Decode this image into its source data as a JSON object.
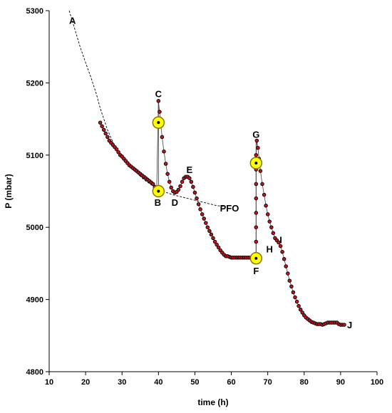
{
  "chart_data": {
    "type": "scatter",
    "xlabel": "time (h)",
    "ylabel": "P (mbar)",
    "xlim": [
      10,
      100
    ],
    "ylim": [
      4800,
      5300
    ],
    "xticks": [
      10,
      20,
      30,
      40,
      50,
      60,
      70,
      80,
      90,
      100
    ],
    "yticks": [
      4800,
      4900,
      5000,
      5100,
      5200,
      5300
    ],
    "xtick_labels": [
      "10",
      "20",
      "30",
      "40",
      "50",
      "60",
      "70",
      "80",
      "90",
      "100"
    ],
    "ytick_labels": [
      "4800",
      "4900",
      "5000",
      "5100",
      "5200",
      "5300"
    ],
    "grid": false,
    "series": [
      {
        "role": "measured",
        "style": "dark-red markers with black outline, joined by thin grey line",
        "marker_color": "#c0141e",
        "points": [
          [
            24.0,
            5145
          ],
          [
            24.5,
            5140
          ],
          [
            25.0,
            5135
          ],
          [
            25.5,
            5130
          ],
          [
            26.0,
            5125
          ],
          [
            26.5,
            5120
          ],
          [
            27.0,
            5117
          ],
          [
            27.5,
            5114
          ],
          [
            28.0,
            5111
          ],
          [
            28.5,
            5108
          ],
          [
            29.0,
            5104
          ],
          [
            29.5,
            5100
          ],
          [
            30.0,
            5098
          ],
          [
            30.5,
            5095
          ],
          [
            31.0,
            5092
          ],
          [
            31.5,
            5089
          ],
          [
            32.0,
            5086
          ],
          [
            32.5,
            5084
          ],
          [
            33.0,
            5082
          ],
          [
            33.5,
            5080
          ],
          [
            34.0,
            5078
          ],
          [
            34.5,
            5076
          ],
          [
            35.0,
            5074
          ],
          [
            35.5,
            5072
          ],
          [
            36.0,
            5070
          ],
          [
            36.5,
            5068
          ],
          [
            37.0,
            5066
          ],
          [
            37.5,
            5064
          ],
          [
            38.0,
            5062
          ],
          [
            38.5,
            5060
          ],
          [
            39.0,
            5056
          ],
          [
            39.5,
            5052
          ],
          [
            40.0,
            5175
          ],
          [
            40.3,
            5160
          ],
          [
            40.6,
            5145
          ],
          [
            41.0,
            5125
          ],
          [
            41.5,
            5105
          ],
          [
            42.0,
            5088
          ],
          [
            42.5,
            5074
          ],
          [
            43.0,
            5063
          ],
          [
            43.5,
            5055
          ],
          [
            44.0,
            5050
          ],
          [
            44.5,
            5048
          ],
          [
            45.0,
            5049
          ],
          [
            45.5,
            5052
          ],
          [
            46.0,
            5057
          ],
          [
            46.5,
            5063
          ],
          [
            47.0,
            5068
          ],
          [
            47.5,
            5070
          ],
          [
            48.0,
            5070
          ],
          [
            48.5,
            5068
          ],
          [
            49.0,
            5063
          ],
          [
            49.5,
            5056
          ],
          [
            50.0,
            5048
          ],
          [
            50.5,
            5040
          ],
          [
            51.0,
            5032
          ],
          [
            51.5,
            5025
          ],
          [
            52.0,
            5018
          ],
          [
            52.5,
            5012
          ],
          [
            53.0,
            5006
          ],
          [
            53.5,
            5000
          ],
          [
            54.0,
            4995
          ],
          [
            54.5,
            4990
          ],
          [
            55.0,
            4985
          ],
          [
            55.5,
            4980
          ],
          [
            56.0,
            4976
          ],
          [
            56.5,
            4972
          ],
          [
            57.0,
            4968
          ],
          [
            57.5,
            4965
          ],
          [
            58.0,
            4962
          ],
          [
            58.5,
            4960
          ],
          [
            59.0,
            4960
          ],
          [
            59.5,
            4959
          ],
          [
            60.0,
            4958
          ],
          [
            60.5,
            4958
          ],
          [
            61.0,
            4958
          ],
          [
            61.5,
            4958
          ],
          [
            62.0,
            4958
          ],
          [
            62.5,
            4958
          ],
          [
            63.0,
            4958
          ],
          [
            63.5,
            4958
          ],
          [
            64.0,
            4958
          ],
          [
            64.5,
            4958
          ],
          [
            65.0,
            4958
          ],
          [
            65.5,
            4957
          ],
          [
            66.0,
            4957
          ],
          [
            66.8,
            4958
          ],
          [
            66.8,
            4980
          ],
          [
            66.8,
            5000
          ],
          [
            66.8,
            5020
          ],
          [
            66.8,
            5040
          ],
          [
            66.8,
            5060
          ],
          [
            66.8,
            5080
          ],
          [
            66.8,
            5100
          ],
          [
            67.0,
            5120
          ],
          [
            67.3,
            5110
          ],
          [
            67.6,
            5095
          ],
          [
            68.0,
            5078
          ],
          [
            68.5,
            5060
          ],
          [
            69.0,
            5045
          ],
          [
            69.5,
            5030
          ],
          [
            70.0,
            5018
          ],
          [
            70.5,
            5008
          ],
          [
            71.0,
            5000
          ],
          [
            71.5,
            4992
          ],
          [
            72.0,
            4985
          ],
          [
            72.5,
            4982
          ],
          [
            73.0,
            4979
          ],
          [
            73.5,
            4974
          ],
          [
            74.0,
            4966
          ],
          [
            74.5,
            4956
          ],
          [
            75.0,
            4946
          ],
          [
            75.5,
            4936
          ],
          [
            76.0,
            4926
          ],
          [
            76.5,
            4918
          ],
          [
            77.0,
            4910
          ],
          [
            77.5,
            4903
          ],
          [
            78.0,
            4897
          ],
          [
            78.5,
            4891
          ],
          [
            79.0,
            4886
          ],
          [
            79.5,
            4882
          ],
          [
            80.0,
            4878
          ],
          [
            80.5,
            4875
          ],
          [
            81.0,
            4873
          ],
          [
            81.5,
            4871
          ],
          [
            82.0,
            4869
          ],
          [
            82.5,
            4868
          ],
          [
            83.0,
            4867
          ],
          [
            83.5,
            4866
          ],
          [
            84.0,
            4866
          ],
          [
            84.5,
            4866
          ],
          [
            85.0,
            4865
          ],
          [
            85.5,
            4866
          ],
          [
            86.0,
            4867
          ],
          [
            86.5,
            4868
          ],
          [
            87.0,
            4868
          ],
          [
            87.5,
            4868
          ],
          [
            88.0,
            4868
          ],
          [
            88.5,
            4868
          ],
          [
            89.0,
            4868
          ],
          [
            89.5,
            4866
          ],
          [
            90.0,
            4865
          ],
          [
            90.5,
            4865
          ],
          [
            91.0,
            4865
          ]
        ]
      },
      {
        "role": "pfo-extrapolation",
        "style": "dashed black curve",
        "points": [
          [
            15.5,
            5300
          ],
          [
            17.0,
            5275
          ],
          [
            18.5,
            5250
          ],
          [
            20.0,
            5228
          ],
          [
            21.5,
            5207
          ],
          [
            23.0,
            5184
          ],
          [
            24.0,
            5165
          ],
          [
            26.0,
            5135
          ],
          [
            28.0,
            5112
          ],
          [
            30.0,
            5095
          ],
          [
            33.0,
            5080
          ],
          [
            36.0,
            5066
          ],
          [
            40.0,
            5052
          ],
          [
            44.0,
            5045
          ],
          [
            48.0,
            5040
          ],
          [
            52.0,
            5035
          ],
          [
            56.0,
            5030
          ],
          [
            58.0,
            5029
          ]
        ]
      }
    ],
    "markers": [
      {
        "label": "C",
        "x": 40.0,
        "y": 5145
      },
      {
        "label": "B",
        "x": 40.0,
        "y": 5050
      },
      {
        "label": "G",
        "x": 66.8,
        "y": 5089
      },
      {
        "label": "F",
        "x": 66.8,
        "y": 4957
      }
    ],
    "vertical_segments": [
      {
        "x": 40.0,
        "y1": 5050,
        "y2": 5175
      },
      {
        "x": 66.8,
        "y1": 4957,
        "y2": 5120
      }
    ],
    "point_labels": [
      {
        "text": "A",
        "x": 16.4,
        "y": 5282
      },
      {
        "text": "C",
        "x": 40.0,
        "y": 5180
      },
      {
        "text": "B",
        "x": 39.8,
        "y": 5030
      },
      {
        "text": "D",
        "x": 44.5,
        "y": 5030
      },
      {
        "text": "E",
        "x": 48.5,
        "y": 5075
      },
      {
        "text": "PFO",
        "x": 59.5,
        "y": 5022
      },
      {
        "text": "G",
        "x": 66.8,
        "y": 5124
      },
      {
        "text": "F",
        "x": 66.8,
        "y": 4935
      },
      {
        "text": "H",
        "x": 70.5,
        "y": 4965
      },
      {
        "text": "I",
        "x": 73.6,
        "y": 4978
      },
      {
        "text": "J",
        "x": 92.5,
        "y": 4860
      }
    ],
    "colors": {
      "marker_fill": "#c0141e",
      "marker_edge": "#000000",
      "highlight_fill": "#ffff00",
      "highlight_edge": "#8a7400"
    }
  }
}
